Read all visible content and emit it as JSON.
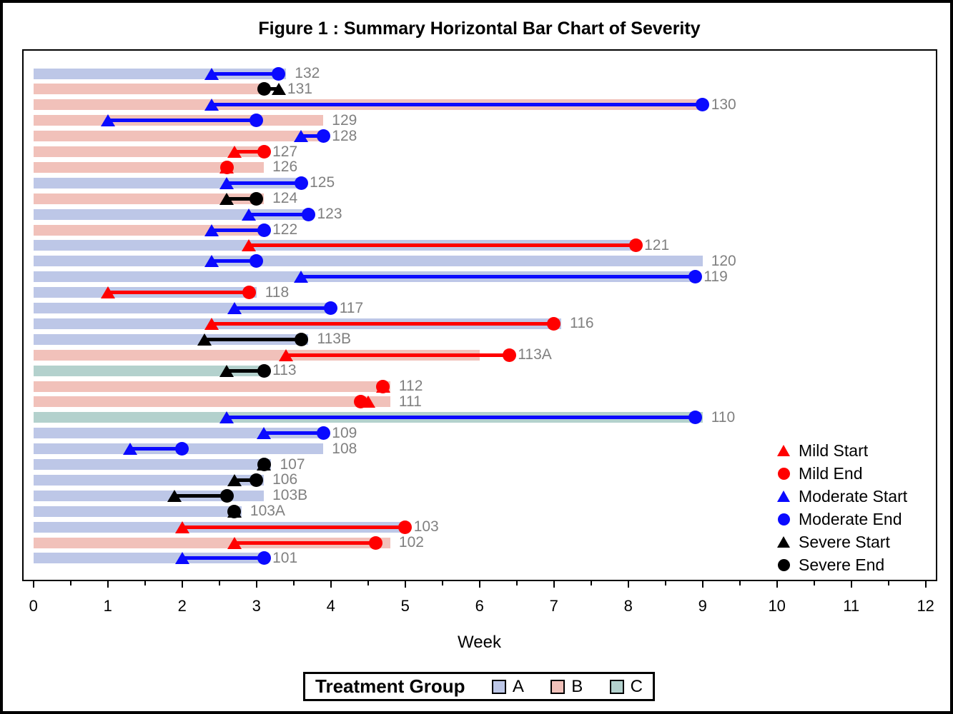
{
  "title": "Figure 1 : Summary Horizontal Bar Chart of Severity",
  "xlabel": "Week",
  "colors": {
    "mild": "#ff0000",
    "moderate": "#0a0aff",
    "severe": "#000000",
    "group_A": "#bdc7e7",
    "group_B": "#f1c1ba",
    "group_C": "#b3d1cd",
    "subject_label": "#808080",
    "axis": "#000000"
  },
  "severity_legend": [
    {
      "label": "Mild Start",
      "severity": "mild",
      "marker": "triangle"
    },
    {
      "label": "Mild End",
      "severity": "mild",
      "marker": "circle"
    },
    {
      "label": "Moderate Start",
      "severity": "moderate",
      "marker": "triangle"
    },
    {
      "label": "Moderate End",
      "severity": "moderate",
      "marker": "circle"
    },
    {
      "label": "Severe Start",
      "severity": "severe",
      "marker": "triangle"
    },
    {
      "label": "Severe End",
      "severity": "severe",
      "marker": "circle"
    }
  ],
  "treatment_legend": {
    "title": "Treatment Group",
    "groups": [
      {
        "label": "A",
        "color": "#bdc7e7"
      },
      {
        "label": "B",
        "color": "#f1c1ba"
      },
      {
        "label": "C",
        "color": "#b3d1cd"
      }
    ]
  },
  "chart_data": {
    "type": "bar",
    "orientation": "horizontal",
    "title": "Figure 1 : Summary Horizontal Bar Chart of Severity",
    "xlabel": "Week",
    "xlim": [
      0,
      12
    ],
    "x_ticks": [
      0,
      1,
      2,
      3,
      4,
      5,
      6,
      7,
      8,
      9,
      10,
      11,
      12
    ],
    "legend_position": "inside-right",
    "grid": false,
    "rows": [
      {
        "id": "132",
        "group": "A",
        "bar_end": 3.4,
        "severity": "moderate",
        "start": 2.4,
        "end": 3.3
      },
      {
        "id": "131",
        "group": "B",
        "bar_end": 3.1,
        "severity": "severe",
        "start": 3.3,
        "end": 3.1
      },
      {
        "id": "130",
        "group": "B",
        "bar_end": 9.0,
        "severity": "moderate",
        "start": 2.4,
        "end": 9.0
      },
      {
        "id": "129",
        "group": "B",
        "bar_end": 3.9,
        "severity": "moderate",
        "start": 1.0,
        "end": 3.0
      },
      {
        "id": "128",
        "group": "B",
        "bar_end": 3.9,
        "severity": "moderate",
        "start": 3.6,
        "end": 3.9
      },
      {
        "id": "127",
        "group": "B",
        "bar_end": 3.1,
        "severity": "mild",
        "start": 2.7,
        "end": 3.1
      },
      {
        "id": "126",
        "group": "B",
        "bar_end": 3.1,
        "severity": "mild",
        "start": 2.6,
        "end": 2.6
      },
      {
        "id": "125",
        "group": "A",
        "bar_end": 3.6,
        "severity": "moderate",
        "start": 2.6,
        "end": 3.6
      },
      {
        "id": "124",
        "group": "B",
        "bar_end": 3.1,
        "severity": "severe",
        "start": 2.6,
        "end": 3.0
      },
      {
        "id": "123",
        "group": "A",
        "bar_end": 3.7,
        "severity": "moderate",
        "start": 2.9,
        "end": 3.7
      },
      {
        "id": "122",
        "group": "B",
        "bar_end": 3.1,
        "severity": "moderate",
        "start": 2.4,
        "end": 3.1
      },
      {
        "id": "121",
        "group": "A",
        "bar_end": 8.1,
        "severity": "mild",
        "start": 2.9,
        "end": 8.1
      },
      {
        "id": "120",
        "group": "A",
        "bar_end": 9.0,
        "severity": "moderate",
        "start": 2.4,
        "end": 3.0
      },
      {
        "id": "119",
        "group": "A",
        "bar_end": 8.9,
        "severity": "moderate",
        "start": 3.6,
        "end": 8.9
      },
      {
        "id": "118",
        "group": "A",
        "bar_end": 3.0,
        "severity": "mild",
        "start": 1.0,
        "end": 2.9
      },
      {
        "id": "117",
        "group": "A",
        "bar_end": 4.0,
        "severity": "moderate",
        "start": 2.7,
        "end": 4.0
      },
      {
        "id": "116",
        "group": "A",
        "bar_end": 7.1,
        "severity": "mild",
        "start": 2.4,
        "end": 7.0
      },
      {
        "id": "113B",
        "group": "A",
        "bar_end": 3.7,
        "severity": "severe",
        "start": 2.3,
        "end": 3.6
      },
      {
        "id": "113A",
        "group": "B",
        "bar_end": 6.0,
        "severity": "mild",
        "start": 3.4,
        "end": 6.4
      },
      {
        "id": "113",
        "group": "C",
        "bar_end": 3.1,
        "severity": "severe",
        "start": 2.6,
        "end": 3.1
      },
      {
        "id": "112",
        "group": "B",
        "bar_end": 4.8,
        "severity": "mild",
        "start": 4.7,
        "end": 4.7
      },
      {
        "id": "111",
        "group": "B",
        "bar_end": 4.8,
        "severity": "mild",
        "start": 4.5,
        "end": 4.4
      },
      {
        "id": "110",
        "group": "C",
        "bar_end": 9.0,
        "severity": "moderate",
        "start": 2.6,
        "end": 8.9
      },
      {
        "id": "109",
        "group": "A",
        "bar_end": 3.9,
        "severity": "moderate",
        "start": 3.1,
        "end": 3.9
      },
      {
        "id": "108",
        "group": "A",
        "bar_end": 3.9,
        "severity": "moderate",
        "start": 1.3,
        "end": 2.0
      },
      {
        "id": "107",
        "group": "A",
        "bar_end": 3.2,
        "severity": "severe",
        "start": 3.1,
        "end": 3.1
      },
      {
        "id": "106",
        "group": "A",
        "bar_end": 3.1,
        "severity": "severe",
        "start": 2.7,
        "end": 3.0
      },
      {
        "id": "103B",
        "group": "A",
        "bar_end": 3.1,
        "severity": "severe",
        "start": 1.9,
        "end": 2.6
      },
      {
        "id": "103A",
        "group": "A",
        "bar_end": 2.8,
        "severity": "severe",
        "start": 2.7,
        "end": 2.7
      },
      {
        "id": "103",
        "group": "A",
        "bar_end": 5.0,
        "severity": "mild",
        "start": 2.0,
        "end": 5.0
      },
      {
        "id": "102",
        "group": "B",
        "bar_end": 4.8,
        "severity": "mild",
        "start": 2.7,
        "end": 4.6
      },
      {
        "id": "101",
        "group": "A",
        "bar_end": 3.1,
        "severity": "moderate",
        "start": 2.0,
        "end": 3.1
      }
    ]
  }
}
